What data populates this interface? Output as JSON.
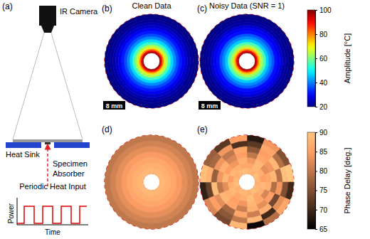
{
  "diagram": {
    "panel": "(a)",
    "labels": {
      "camera": "IR Camera",
      "heat_sink": "Heat Sink",
      "specimen": "Specimen",
      "absorber": "Absorber",
      "heat_input": "Periodic Heat Input",
      "power": "Power",
      "time": "Time"
    }
  },
  "colorbars": [
    {
      "label": "Amplitude [°C]",
      "lim": [
        20,
        100
      ],
      "ticks": [
        20,
        40,
        60,
        80,
        100
      ]
    },
    {
      "label": "Phase Delay [deg.]",
      "lim": [
        65,
        90
      ],
      "ticks": [
        65,
        70,
        75,
        80,
        85,
        90
      ]
    }
  ],
  "chart_data": [
    {
      "type": "heatmap",
      "panel": "(b)",
      "title": "Clean Data",
      "scale_bar": {
        "label": "8 mm",
        "length": 8
      },
      "rlim": [
        0,
        17
      ],
      "radii": [
        3,
        3.5,
        4,
        4.5,
        5,
        6,
        7,
        8,
        9,
        10,
        11,
        12,
        13,
        14,
        15,
        16,
        17
      ],
      "values": [
        98,
        90,
        80,
        72,
        64,
        55,
        47,
        41,
        36,
        32,
        29,
        26,
        24,
        22,
        21,
        20
      ]
    },
    {
      "type": "heatmap",
      "panel": "(c)",
      "title": "Noisy Data (SNR = 1)",
      "scale_bar": {
        "label": "8 mm",
        "length": 8
      },
      "rlim": [
        0,
        17
      ],
      "radii": [
        3,
        3.5,
        4,
        4.5,
        5,
        6,
        7,
        8,
        9,
        10,
        11,
        12,
        13,
        14,
        15,
        16,
        17
      ],
      "values": [
        97,
        91,
        79,
        73,
        63,
        56,
        46,
        41,
        37,
        31,
        29,
        27,
        23,
        22,
        21,
        20
      ]
    },
    {
      "type": "heatmap",
      "panel": "(d)",
      "rlim": [
        0,
        17
      ],
      "radii": [
        3,
        5,
        7,
        9,
        11,
        13,
        15,
        17
      ],
      "values": [
        88,
        87,
        86,
        84.5,
        83,
        81.5,
        80
      ]
    },
    {
      "type": "heatmap",
      "panel": "(e)",
      "rlim": [
        0,
        17
      ],
      "radii": [
        3,
        5,
        7,
        9,
        11,
        13,
        15,
        17
      ],
      "values": [
        [
          88,
          87,
          89,
          88,
          87,
          88,
          89,
          87,
          88,
          88,
          87,
          89,
          88,
          87,
          88,
          89
        ],
        [
          86,
          88,
          87,
          85,
          88,
          87,
          86,
          89,
          87,
          86,
          88,
          87,
          85,
          88,
          87,
          86
        ],
        [
          84,
          88,
          83,
          86,
          87,
          82,
          86,
          88,
          84,
          85,
          87,
          83,
          88,
          85,
          84,
          87
        ],
        [
          80,
          86,
          84,
          88,
          79,
          85,
          83,
          87,
          81,
          86,
          88,
          80,
          84,
          87,
          82,
          85
        ],
        [
          76,
          85,
          88,
          79,
          84,
          74,
          87,
          81,
          86,
          78,
          83,
          89,
          77,
          84,
          80,
          86
        ],
        [
          72,
          86,
          79,
          89,
          75,
          83,
          70,
          88,
          80,
          76,
          85,
          73,
          87,
          78,
          84,
          71
        ],
        [
          68,
          84,
          75,
          90,
          70,
          86,
          79,
          66,
          88,
          74,
          82,
          69,
          89,
          77,
          72,
          85
        ]
      ]
    }
  ]
}
